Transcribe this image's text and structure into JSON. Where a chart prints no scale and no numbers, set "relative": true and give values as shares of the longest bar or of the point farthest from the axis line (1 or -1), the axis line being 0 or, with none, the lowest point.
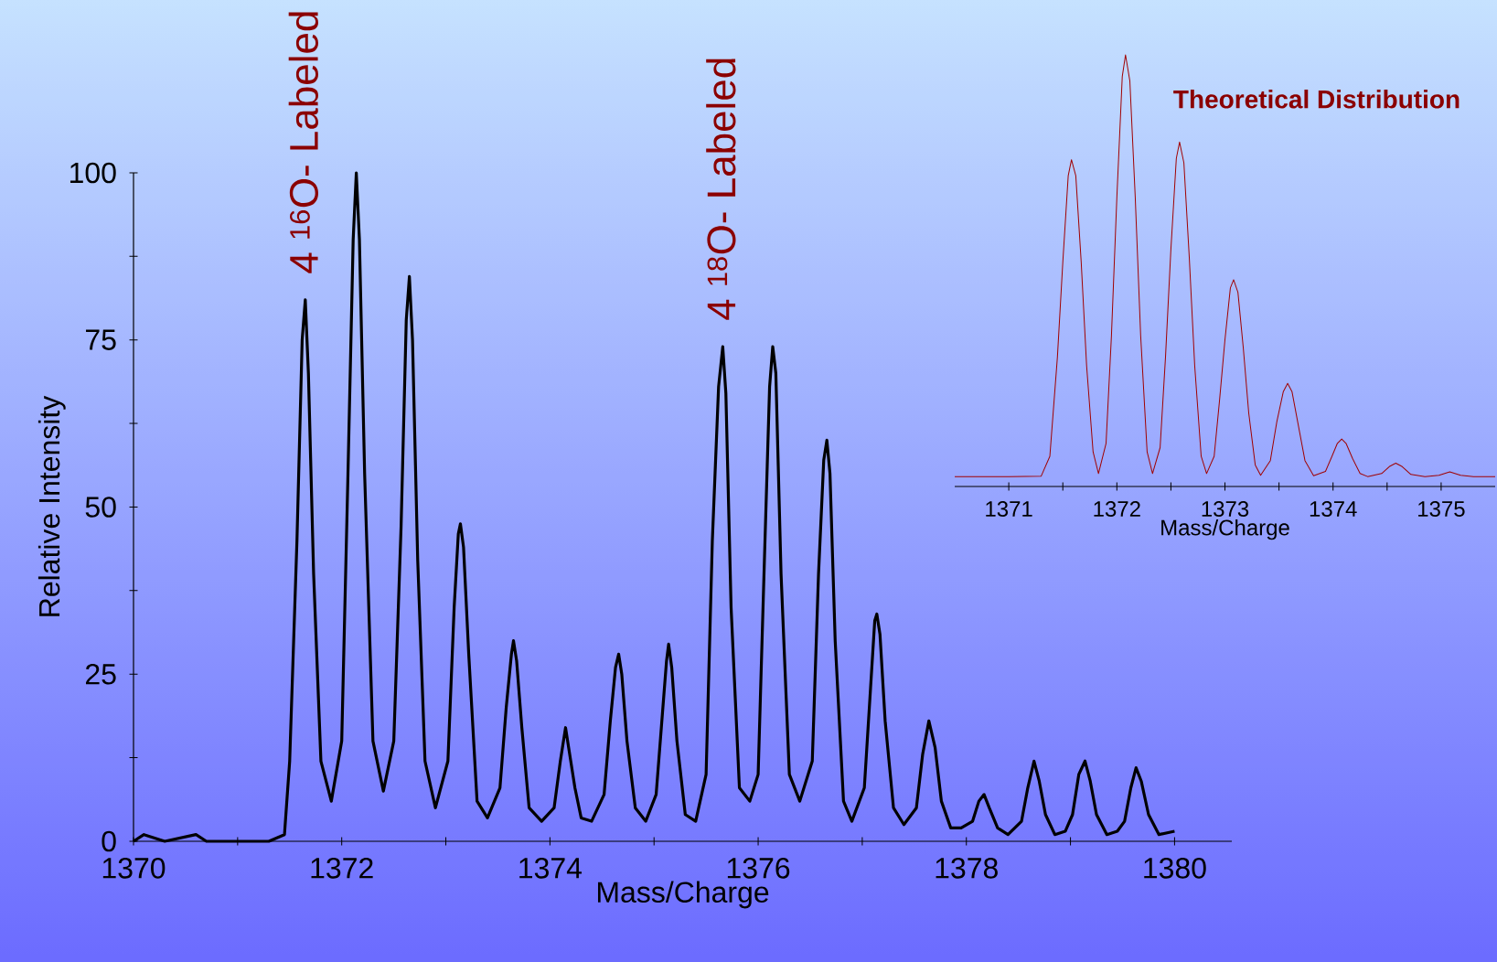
{
  "chart_data": [
    {
      "type": "line",
      "xlabel": "Mass/Charge",
      "ylabel": "Relative Intensity",
      "xlim": [
        1370,
        1380.55
      ],
      "ylim": [
        0,
        100
      ],
      "xticks": [
        1370,
        {
          "value": 1371,
          "label": null
        },
        1372,
        {
          "value": 1373,
          "label": null
        },
        1374,
        {
          "value": 1375,
          "label": null
        },
        1376,
        {
          "value": 1377,
          "label": null
        },
        1378,
        {
          "value": 1379,
          "label": null
        },
        1380
      ],
      "yticks": [
        0,
        {
          "value": 12.5,
          "label": null
        },
        25,
        {
          "value": 37.5,
          "label": null
        },
        50,
        {
          "value": 62.5,
          "label": null
        },
        75,
        {
          "value": 87.5,
          "label": null
        },
        100
      ],
      "x": [
        1370,
        1370.1,
        1370.3,
        1370.6,
        1370.7,
        1371.1,
        1371.3,
        1371.45,
        1371.5,
        1371.57,
        1371.62,
        1371.65,
        1371.68,
        1371.73,
        1371.8,
        1371.9,
        1372.0,
        1372.06,
        1372.11,
        1372.14,
        1372.17,
        1372.22,
        1372.3,
        1372.4,
        1372.5,
        1372.57,
        1372.62,
        1372.65,
        1372.68,
        1372.73,
        1372.8,
        1372.9,
        1373.02,
        1373.08,
        1373.12,
        1373.14,
        1373.17,
        1373.22,
        1373.3,
        1373.4,
        1373.52,
        1373.58,
        1373.63,
        1373.65,
        1373.68,
        1373.73,
        1373.8,
        1373.92,
        1374.04,
        1374.1,
        1374.15,
        1374.18,
        1374.24,
        1374.3,
        1374.4,
        1374.52,
        1374.58,
        1374.63,
        1374.66,
        1374.69,
        1374.74,
        1374.82,
        1374.92,
        1375.02,
        1375.08,
        1375.12,
        1375.14,
        1375.17,
        1375.22,
        1375.3,
        1375.4,
        1375.5,
        1375.56,
        1375.62,
        1375.66,
        1375.69,
        1375.74,
        1375.82,
        1375.92,
        1376.0,
        1376.06,
        1376.11,
        1376.14,
        1376.17,
        1376.22,
        1376.3,
        1376.4,
        1376.52,
        1376.58,
        1376.63,
        1376.66,
        1376.69,
        1376.74,
        1376.82,
        1376.9,
        1377.02,
        1377.08,
        1377.12,
        1377.14,
        1377.17,
        1377.22,
        1377.3,
        1377.4,
        1377.52,
        1377.58,
        1377.64,
        1377.7,
        1377.76,
        1377.85,
        1377.95,
        1378.06,
        1378.12,
        1378.17,
        1378.22,
        1378.3,
        1378.4,
        1378.53,
        1378.59,
        1378.65,
        1378.7,
        1378.76,
        1378.85,
        1378.95,
        1379.02,
        1379.08,
        1379.14,
        1379.19,
        1379.25,
        1379.35,
        1379.45,
        1379.52,
        1379.58,
        1379.63,
        1379.68,
        1379.75,
        1379.85,
        1380
      ],
      "series": [
        {
          "color": "#000000",
          "values": [
            0,
            1,
            0,
            1,
            0,
            0,
            0,
            1,
            12,
            45,
            75,
            81,
            70,
            40,
            12,
            6,
            15,
            55,
            90,
            100,
            90,
            55,
            15,
            7.5,
            15,
            47,
            78,
            84.5,
            75,
            42,
            12,
            5,
            12,
            35,
            46,
            47.5,
            44,
            28,
            6,
            3.5,
            8,
            20,
            28,
            30,
            27,
            17,
            5,
            3,
            5,
            12,
            17,
            14,
            8,
            3.5,
            3,
            7,
            18,
            26,
            28,
            25,
            15,
            5,
            3,
            7,
            19,
            27,
            29.5,
            26,
            15,
            4,
            3,
            10,
            45,
            68,
            74,
            67,
            35,
            8,
            6,
            10,
            42,
            68,
            74,
            70,
            40,
            10,
            6,
            12,
            40,
            57,
            60,
            55,
            30,
            6,
            3,
            8,
            23,
            33,
            34,
            31,
            18,
            5,
            2.5,
            5,
            13,
            18,
            14,
            6,
            2,
            2,
            3,
            6,
            7,
            5,
            2,
            1,
            3,
            8,
            12,
            9,
            4,
            1,
            1.5,
            4,
            10,
            12,
            9,
            4,
            1,
            1.5,
            3,
            8,
            11,
            9,
            4,
            1,
            1.5
          ]
        }
      ],
      "annotations": [
        {
          "text": "4 $^{16}$O- Labeled",
          "x": 1371.65,
          "y": 81
        },
        {
          "text": "4 $^{18}$O- Labeled",
          "x": 1375.66,
          "y": 74
        }
      ]
    },
    {
      "type": "line",
      "title": "Theoretical Distribution",
      "xlabel": "Mass/Charge",
      "relative": true,
      "tick_labels": "x",
      "xlim": [
        1370.5,
        1375.5
      ],
      "xticks": [
        1371,
        {
          "value": 1371.5,
          "label": null
        },
        1372,
        {
          "value": 1372.5,
          "label": null
        },
        1373,
        {
          "value": 1373.5,
          "label": null
        },
        1374,
        {
          "value": 1374.5,
          "label": null
        },
        1375
      ],
      "x": [
        1370.5,
        1371.0,
        1371.3,
        1371.38,
        1371.45,
        1371.5,
        1371.55,
        1371.58,
        1371.62,
        1371.67,
        1371.72,
        1371.78,
        1371.83,
        1371.9,
        1371.95,
        1372.0,
        1372.05,
        1372.08,
        1372.12,
        1372.17,
        1372.22,
        1372.28,
        1372.33,
        1372.4,
        1372.45,
        1372.5,
        1372.55,
        1372.58,
        1372.62,
        1372.67,
        1372.72,
        1372.78,
        1372.83,
        1372.9,
        1372.95,
        1373.0,
        1373.05,
        1373.08,
        1373.12,
        1373.17,
        1373.22,
        1373.28,
        1373.33,
        1373.42,
        1373.48,
        1373.54,
        1373.58,
        1373.62,
        1373.68,
        1373.74,
        1373.82,
        1373.93,
        1373.99,
        1374.04,
        1374.08,
        1374.12,
        1374.18,
        1374.25,
        1374.32,
        1374.45,
        1374.52,
        1374.58,
        1374.64,
        1374.72,
        1374.85,
        1374.98,
        1375.08,
        1375.18,
        1375.3,
        1375.5
      ],
      "series": [
        {
          "color": "#a00000",
          "values": [
            0.023,
            0.023,
            0.024,
            0.07,
            0.3,
            0.52,
            0.72,
            0.757,
            0.72,
            0.52,
            0.28,
            0.08,
            0.03,
            0.1,
            0.35,
            0.67,
            0.95,
            1.0,
            0.94,
            0.67,
            0.35,
            0.08,
            0.03,
            0.09,
            0.3,
            0.55,
            0.76,
            0.798,
            0.75,
            0.53,
            0.28,
            0.07,
            0.03,
            0.07,
            0.2,
            0.34,
            0.46,
            0.479,
            0.45,
            0.32,
            0.17,
            0.05,
            0.026,
            0.06,
            0.15,
            0.22,
            0.239,
            0.22,
            0.14,
            0.06,
            0.025,
            0.035,
            0.07,
            0.1,
            0.11,
            0.1,
            0.065,
            0.03,
            0.023,
            0.03,
            0.046,
            0.054,
            0.046,
            0.028,
            0.023,
            0.026,
            0.034,
            0.026,
            0.023,
            0.023
          ]
        }
      ]
    }
  ]
}
